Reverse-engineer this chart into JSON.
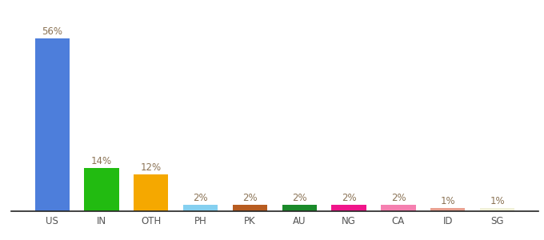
{
  "categories": [
    "US",
    "IN",
    "OTH",
    "PH",
    "PK",
    "AU",
    "NG",
    "CA",
    "ID",
    "SG"
  ],
  "values": [
    56,
    14,
    12,
    2,
    2,
    2,
    2,
    2,
    1,
    1
  ],
  "bar_colors": [
    "#4d7edb",
    "#22bb11",
    "#f5a800",
    "#85d0f0",
    "#b85c20",
    "#1a8a2a",
    "#f0158a",
    "#f580b0",
    "#e8a090",
    "#f0f0d8"
  ],
  "label_fontsize": 8.5,
  "tick_fontsize": 8.5,
  "ylim": [
    0,
    63
  ],
  "bar_width": 0.7,
  "label_color": "#8B7355",
  "background_color": "#ffffff",
  "spine_color": "#222222"
}
